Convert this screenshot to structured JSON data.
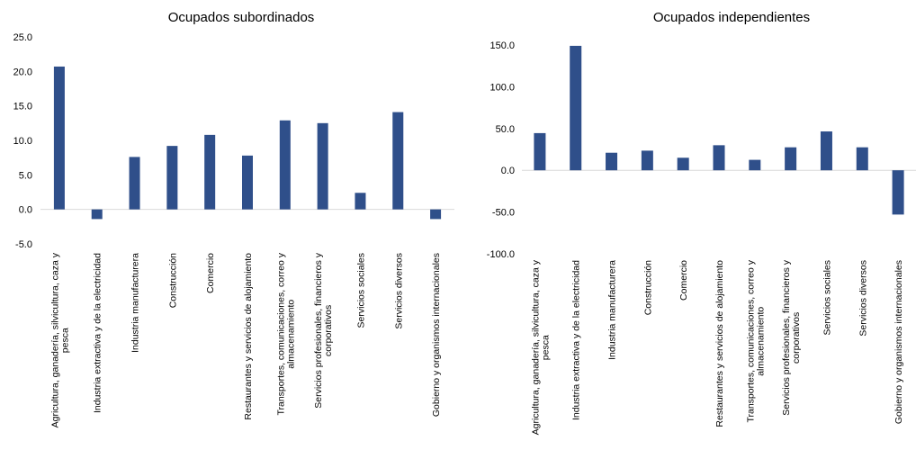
{
  "chart_data": [
    {
      "type": "bar",
      "title": "Ocupados subordinados",
      "categories": [
        "Agricultura, ganadería, silvicultura, caza y pesca",
        "Industria extractiva y de la electricidad",
        "Industria manufacturera",
        "Construcción",
        "Comercio",
        "Restaurantes y servicios de alojamiento",
        "Transportes, comunicaciones, correo y almacenamiento",
        "Servicios profesionales, financieros y corporativos",
        "Servicios sociales",
        "Servicios diversos",
        "Gobierno y organismos internacionales"
      ],
      "category_lines": [
        [
          "Agricultura, ganadería, silvicultura, caza y",
          "pesca"
        ],
        [
          "Industria extractiva y de la electricidad"
        ],
        [
          "Industria manufacturera"
        ],
        [
          "Construcción"
        ],
        [
          "Comercio"
        ],
        [
          "Restaurantes y servicios de alojamiento"
        ],
        [
          "Transportes, comunicaciones, correo y",
          "almacenamiento"
        ],
        [
          "Servicios profesionales, financieros y",
          "corporativos"
        ],
        [
          "Servicios sociales"
        ],
        [
          "Servicios diversos"
        ],
        [
          "Gobierno y organismos internacionales"
        ]
      ],
      "values": [
        20.7,
        -1.4,
        7.6,
        9.2,
        10.8,
        7.8,
        12.9,
        12.5,
        2.4,
        14.1,
        -1.4
      ],
      "ylim": [
        -5,
        25
      ],
      "yticks": [
        "25.0",
        "20.0",
        "15.0",
        "10.0",
        "5.0",
        "0.0",
        "-5.0"
      ],
      "ytick_values": [
        25,
        20,
        15,
        10,
        5,
        0,
        -5
      ],
      "bar_color": "#2f4f8a",
      "grid": false
    },
    {
      "type": "bar",
      "title": "Ocupados independientes",
      "categories": [
        "Agricultura, ganadería, silvicultura, caza y pesca",
        "Industria extractiva y de la electricidad",
        "Industria manufacturera",
        "Construcción",
        "Comercio",
        "Restaurantes y servicios de alojamiento",
        "Transportes, comunicaciones, correo y almacenamiento",
        "Servicios profesionales, financieros y corporativos",
        "Servicios sociales",
        "Servicios diversos",
        "Gobierno y organismos internacionales"
      ],
      "category_lines": [
        [
          "Agricultura, ganadería, silvicultura, caza y",
          "pesca"
        ],
        [
          "Industria extractiva y de la electricidad"
        ],
        [
          "Industria manufacturera"
        ],
        [
          "Construcción"
        ],
        [
          "Comercio"
        ],
        [
          "Restaurantes y servicios de alojamiento"
        ],
        [
          "Transportes, comunicaciones, correo y",
          "almacenamiento"
        ],
        [
          "Servicios profesionales, financieros y",
          "corporativos"
        ],
        [
          "Servicios sociales"
        ],
        [
          "Servicios diversos"
        ],
        [
          "Gobierno y organismos internacionales"
        ]
      ],
      "values": [
        44.5,
        149.0,
        21.0,
        23.5,
        15.0,
        30.0,
        12.5,
        27.5,
        46.5,
        27.5,
        -53.0
      ],
      "ylim": [
        -100,
        150
      ],
      "yticks": [
        "150.0",
        "100.0",
        "50.0",
        "0.0",
        "-50.0",
        "-100.0"
      ],
      "ytick_values": [
        150,
        100,
        50,
        0,
        -50,
        -100
      ],
      "bar_color": "#2f4f8a",
      "grid": false
    }
  ]
}
